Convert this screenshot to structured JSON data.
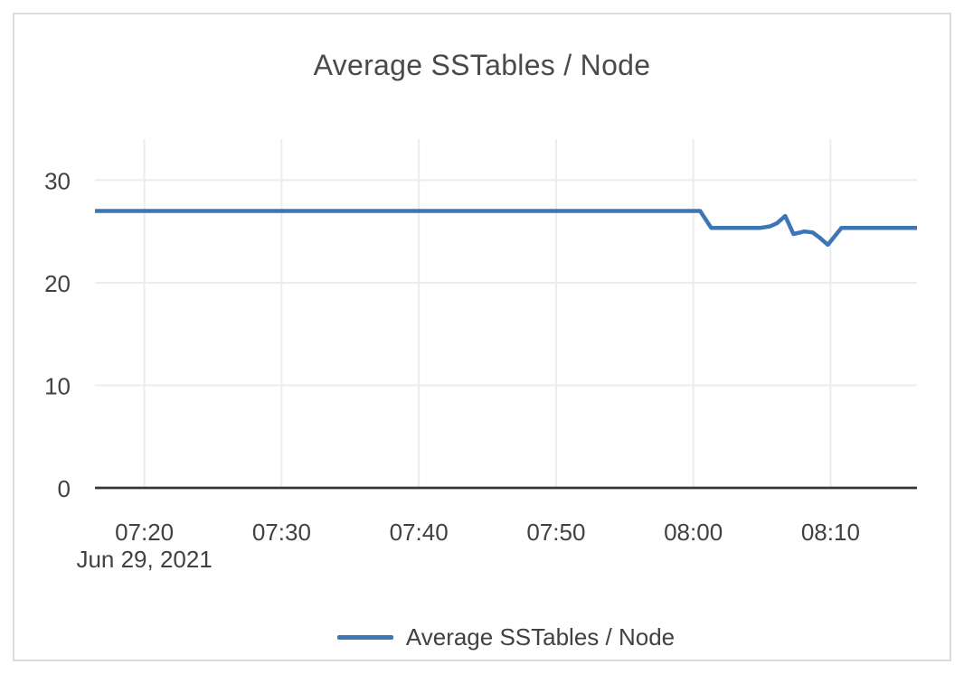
{
  "title": "Average SSTables / Node",
  "legend": {
    "items": [
      {
        "label": "Average SSTables / Node",
        "color": "#3d76b4"
      }
    ]
  },
  "colors": {
    "series_blue": "#3d76b4",
    "grid": "#ececec",
    "axis": "#37373a",
    "tick_text": "#3f4245",
    "title_text": "#4a4a4a",
    "card_border": "#dcdcdc",
    "background": "#ffffff"
  },
  "chart_data": {
    "type": "line",
    "title": "Average SSTables / Node",
    "xlabel": "",
    "ylabel": "",
    "grid": true,
    "legend_position": "bottom",
    "x_axis": {
      "date_label": "Jun 29, 2021",
      "tick_labels": [
        "07:20",
        "07:30",
        "07:40",
        "07:50",
        "08:00",
        "08:10"
      ],
      "range": [
        "07:16:24",
        "08:16:18"
      ]
    },
    "y_axis": {
      "tick_labels": [
        0,
        10,
        20,
        30
      ],
      "range": [
        0,
        34
      ]
    },
    "series": [
      {
        "name": "Average SSTables / Node",
        "color": "#3d76b4",
        "points": [
          [
            "07:16:24",
            27
          ],
          [
            "08:00:30",
            27
          ],
          [
            "08:01:18",
            25.35
          ],
          [
            "08:04:54",
            25.35
          ],
          [
            "08:05:36",
            25.5
          ],
          [
            "08:06:06",
            25.8
          ],
          [
            "08:06:42",
            26.5
          ],
          [
            "08:07:18",
            24.75
          ],
          [
            "08:08:06",
            25.0
          ],
          [
            "08:08:42",
            24.9
          ],
          [
            "08:09:12",
            24.4
          ],
          [
            "08:09:48",
            23.7
          ],
          [
            "08:10:48",
            25.35
          ],
          [
            "08:16:18",
            25.35
          ]
        ]
      }
    ]
  }
}
